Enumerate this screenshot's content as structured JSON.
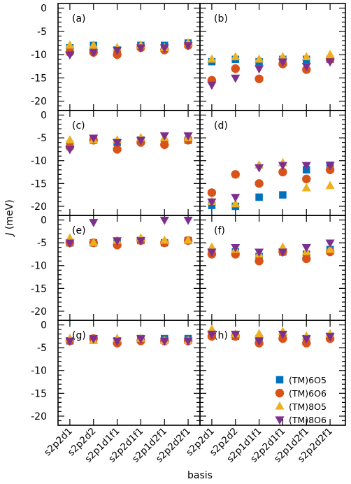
{
  "chart_data": {
    "type": "scatter",
    "x_label": "basis",
    "y_label_italic": "J",
    "y_label_rest": " (meV)",
    "y_range": [
      -22,
      1
    ],
    "y_ticks": [
      0,
      -5,
      -10,
      -15,
      -20
    ],
    "categories": [
      "s2p2d1",
      "s2p2d2",
      "s2p1d1f1",
      "s2p2d1f1",
      "s2p1d2f1",
      "s2p2d2f1"
    ],
    "series_styles": [
      {
        "marker": "square",
        "color": "#0072bd"
      },
      {
        "marker": "circle",
        "color": "#d95319"
      },
      {
        "marker": "triangle-up",
        "color": "#edb120"
      },
      {
        "marker": "triangle-down",
        "color": "#7e2f8e"
      }
    ],
    "legend": {
      "placement": "panel-h-lower-right",
      "entries": [
        "(TM)6O5",
        "(TM)6O6",
        "(TM)8O5",
        "(TM)8O6"
      ]
    },
    "panels": [
      {
        "label": "(a)",
        "values": [
          [
            -8.5,
            -8.0,
            -9.0,
            -8.0,
            -8.0,
            -7.5
          ],
          [
            -9.5,
            -9.5,
            -10.0,
            -8.5,
            -9.0,
            -8.0
          ],
          [
            -8.0,
            -8.0,
            -8.5,
            -8.0,
            -8.5,
            -7.5
          ],
          [
            -10.0,
            -9.5,
            -9.0,
            -8.5,
            -8.5,
            -8.0
          ]
        ]
      },
      {
        "label": "(b)",
        "values": [
          [
            -11.5,
            -11.0,
            -11.5,
            -11.0,
            -11.0,
            -11.0
          ],
          [
            -15.5,
            -13.0,
            -15.2,
            -12.0,
            -13.2,
            -11.0
          ],
          [
            -11.0,
            -10.5,
            -11.0,
            -10.5,
            -10.5,
            -10.0
          ],
          [
            -16.5,
            -15.0,
            -13.0,
            -11.5,
            -12.5,
            -11.5
          ]
        ]
      },
      {
        "label": "(c)",
        "values": [
          [
            -6.5,
            -5.5,
            -6.0,
            -5.5,
            -6.0,
            -5.5
          ],
          [
            -7.0,
            -5.5,
            -7.5,
            -6.0,
            -6.5,
            -5.5
          ],
          [
            -5.5,
            -5.5,
            -5.5,
            -5.0,
            -5.0,
            -5.0
          ],
          [
            -7.5,
            -5.0,
            -6.0,
            -5.5,
            -4.5,
            -4.5
          ]
        ]
      },
      {
        "label": "(d)",
        "values": [
          [
            -19.8,
            -20.0,
            -18.0,
            -17.5,
            -12.0,
            -11.0
          ],
          [
            -17.0,
            -13.0,
            -15.0,
            -12.5,
            -14.0,
            -12.0
          ],
          [
            -19.0,
            -19.5,
            -11.0,
            -10.5,
            -16.0,
            -15.5
          ],
          [
            -19.0,
            -18.0,
            -11.5,
            -11.0,
            -11.0,
            -11.0
          ]
        ]
      },
      {
        "label": "(e)",
        "values": [
          [
            -5.0,
            -5.0,
            -5.0,
            -4.5,
            -5.0,
            -4.5
          ],
          [
            -5.0,
            -5.0,
            -5.5,
            -4.5,
            -5.0,
            -4.5
          ],
          [
            -4.0,
            -5.0,
            -4.5,
            -4.0,
            -4.5,
            -4.5
          ],
          [
            -5.0,
            -0.5,
            -4.5,
            -4.5,
            0.0,
            0.0
          ]
        ]
      },
      {
        "label": "(f)",
        "values": [
          [
            -7.0,
            -7.0,
            -8.0,
            -7.0,
            -7.5,
            -6.5
          ],
          [
            -7.5,
            -7.5,
            -9.0,
            -7.0,
            -8.5,
            -7.0
          ],
          [
            -6.0,
            -6.5,
            -7.5,
            -6.0,
            -7.0,
            -6.5
          ],
          [
            -7.0,
            -6.0,
            -7.0,
            -7.0,
            -6.0,
            -5.0
          ]
        ]
      },
      {
        "label": "(g)",
        "values": [
          [
            -3.5,
            -3.0,
            -3.5,
            -3.0,
            -3.0,
            -3.0
          ],
          [
            -3.5,
            -3.0,
            -4.0,
            -3.5,
            -3.5,
            -3.5
          ],
          [
            -3.0,
            -3.5,
            -3.0,
            -3.0,
            -3.5,
            -3.5
          ],
          [
            -3.5,
            -3.0,
            -3.5,
            -3.0,
            -3.5,
            -3.5
          ]
        ]
      },
      {
        "label": "(h)",
        "values": [
          [
            -2.0,
            -2.5,
            -3.0,
            -2.5,
            -3.0,
            -2.5
          ],
          [
            -2.5,
            -2.5,
            -4.0,
            -3.0,
            -4.0,
            -3.0
          ],
          [
            -1.0,
            -2.0,
            -2.0,
            -1.5,
            -2.5,
            -2.0
          ],
          [
            -2.0,
            -2.0,
            -3.5,
            -2.0,
            -3.0,
            -2.5
          ]
        ]
      }
    ]
  }
}
